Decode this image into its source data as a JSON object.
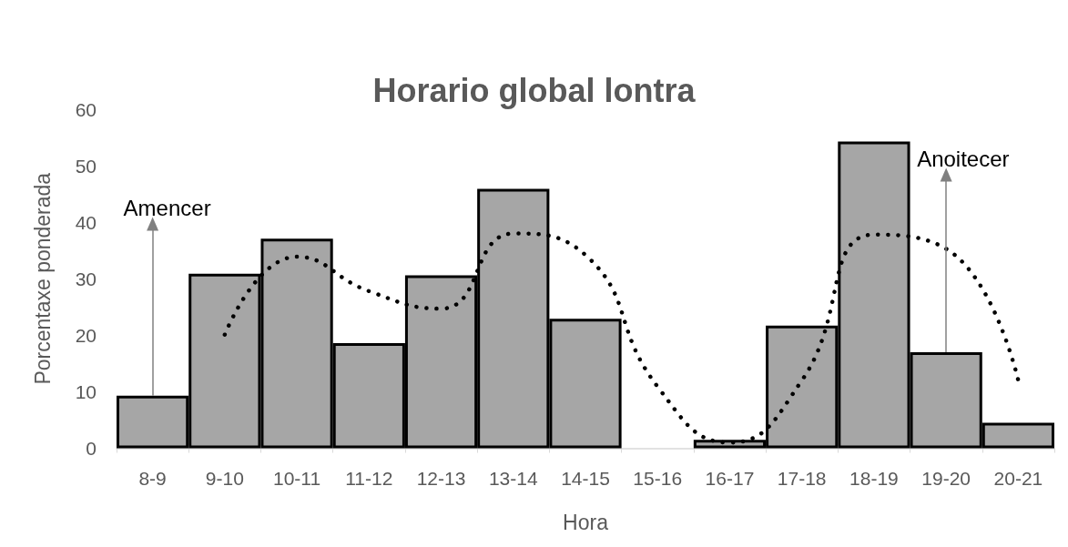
{
  "chart_data": {
    "type": "bar",
    "title": "Horario global lontra",
    "xlabel": "Hora",
    "ylabel": "Porcentaxe ponderada",
    "categories": [
      "8-9",
      "9-10",
      "10-11",
      "11-12",
      "12-13",
      "13-14",
      "14-15",
      "15-16",
      "16-17",
      "17-18",
      "18-19",
      "19-20",
      "20-21"
    ],
    "series": [
      {
        "color": "#a6a6a6",
        "values": [
          9.3,
          30.9,
          37.1,
          18.6,
          30.6,
          45.9,
          22.9,
          0,
          1.5,
          21.7,
          54.3,
          17.0,
          4.5
        ]
      },
      {
        "type": "line",
        "color": "#000000",
        "line_style": "dotted",
        "marker": "none",
        "values": [
          null,
          20.1,
          33.9,
          27.8,
          24.7,
          38,
          34.2,
          10.9,
          1,
          12,
          37.8,
          35.3,
          12
        ]
      }
    ],
    "ylim": [
      0,
      60
    ],
    "yticks": [
      0,
      10,
      20,
      30,
      40,
      50,
      60
    ],
    "annotations": [
      {
        "text": "Amencer",
        "x": "8-9",
        "y": 39.7
      },
      {
        "text": "Anoitecer",
        "x": "19-20",
        "y": 48.4
      }
    ]
  }
}
